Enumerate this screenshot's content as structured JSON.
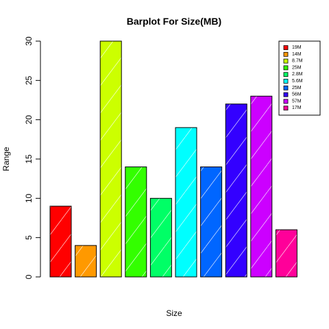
{
  "chart_data": {
    "type": "bar",
    "title": "Barplot For Size(MB)",
    "xlabel": "Size",
    "ylabel": "Range",
    "ylim": [
      0,
      30
    ],
    "yticks": [
      "0",
      "5",
      "10",
      "15",
      "20",
      "25",
      "30"
    ],
    "values": [
      9,
      4,
      30,
      14,
      10,
      19,
      14,
      22,
      23,
      6
    ],
    "colors": [
      "#FF0000",
      "#FF9900",
      "#CCFF00",
      "#33FF00",
      "#00FF66",
      "#00FFFF",
      "#0066FF",
      "#3300FF",
      "#CC00FF",
      "#FF0099"
    ],
    "legend": {
      "position": "top-right",
      "entries": [
        "19M",
        "14M",
        "8.7M",
        "25M",
        "2.8M",
        "5.6M",
        "25M",
        "56M",
        "57M",
        "17M"
      ]
    },
    "fill_pattern": "diagonal-hatch",
    "grid": false
  }
}
